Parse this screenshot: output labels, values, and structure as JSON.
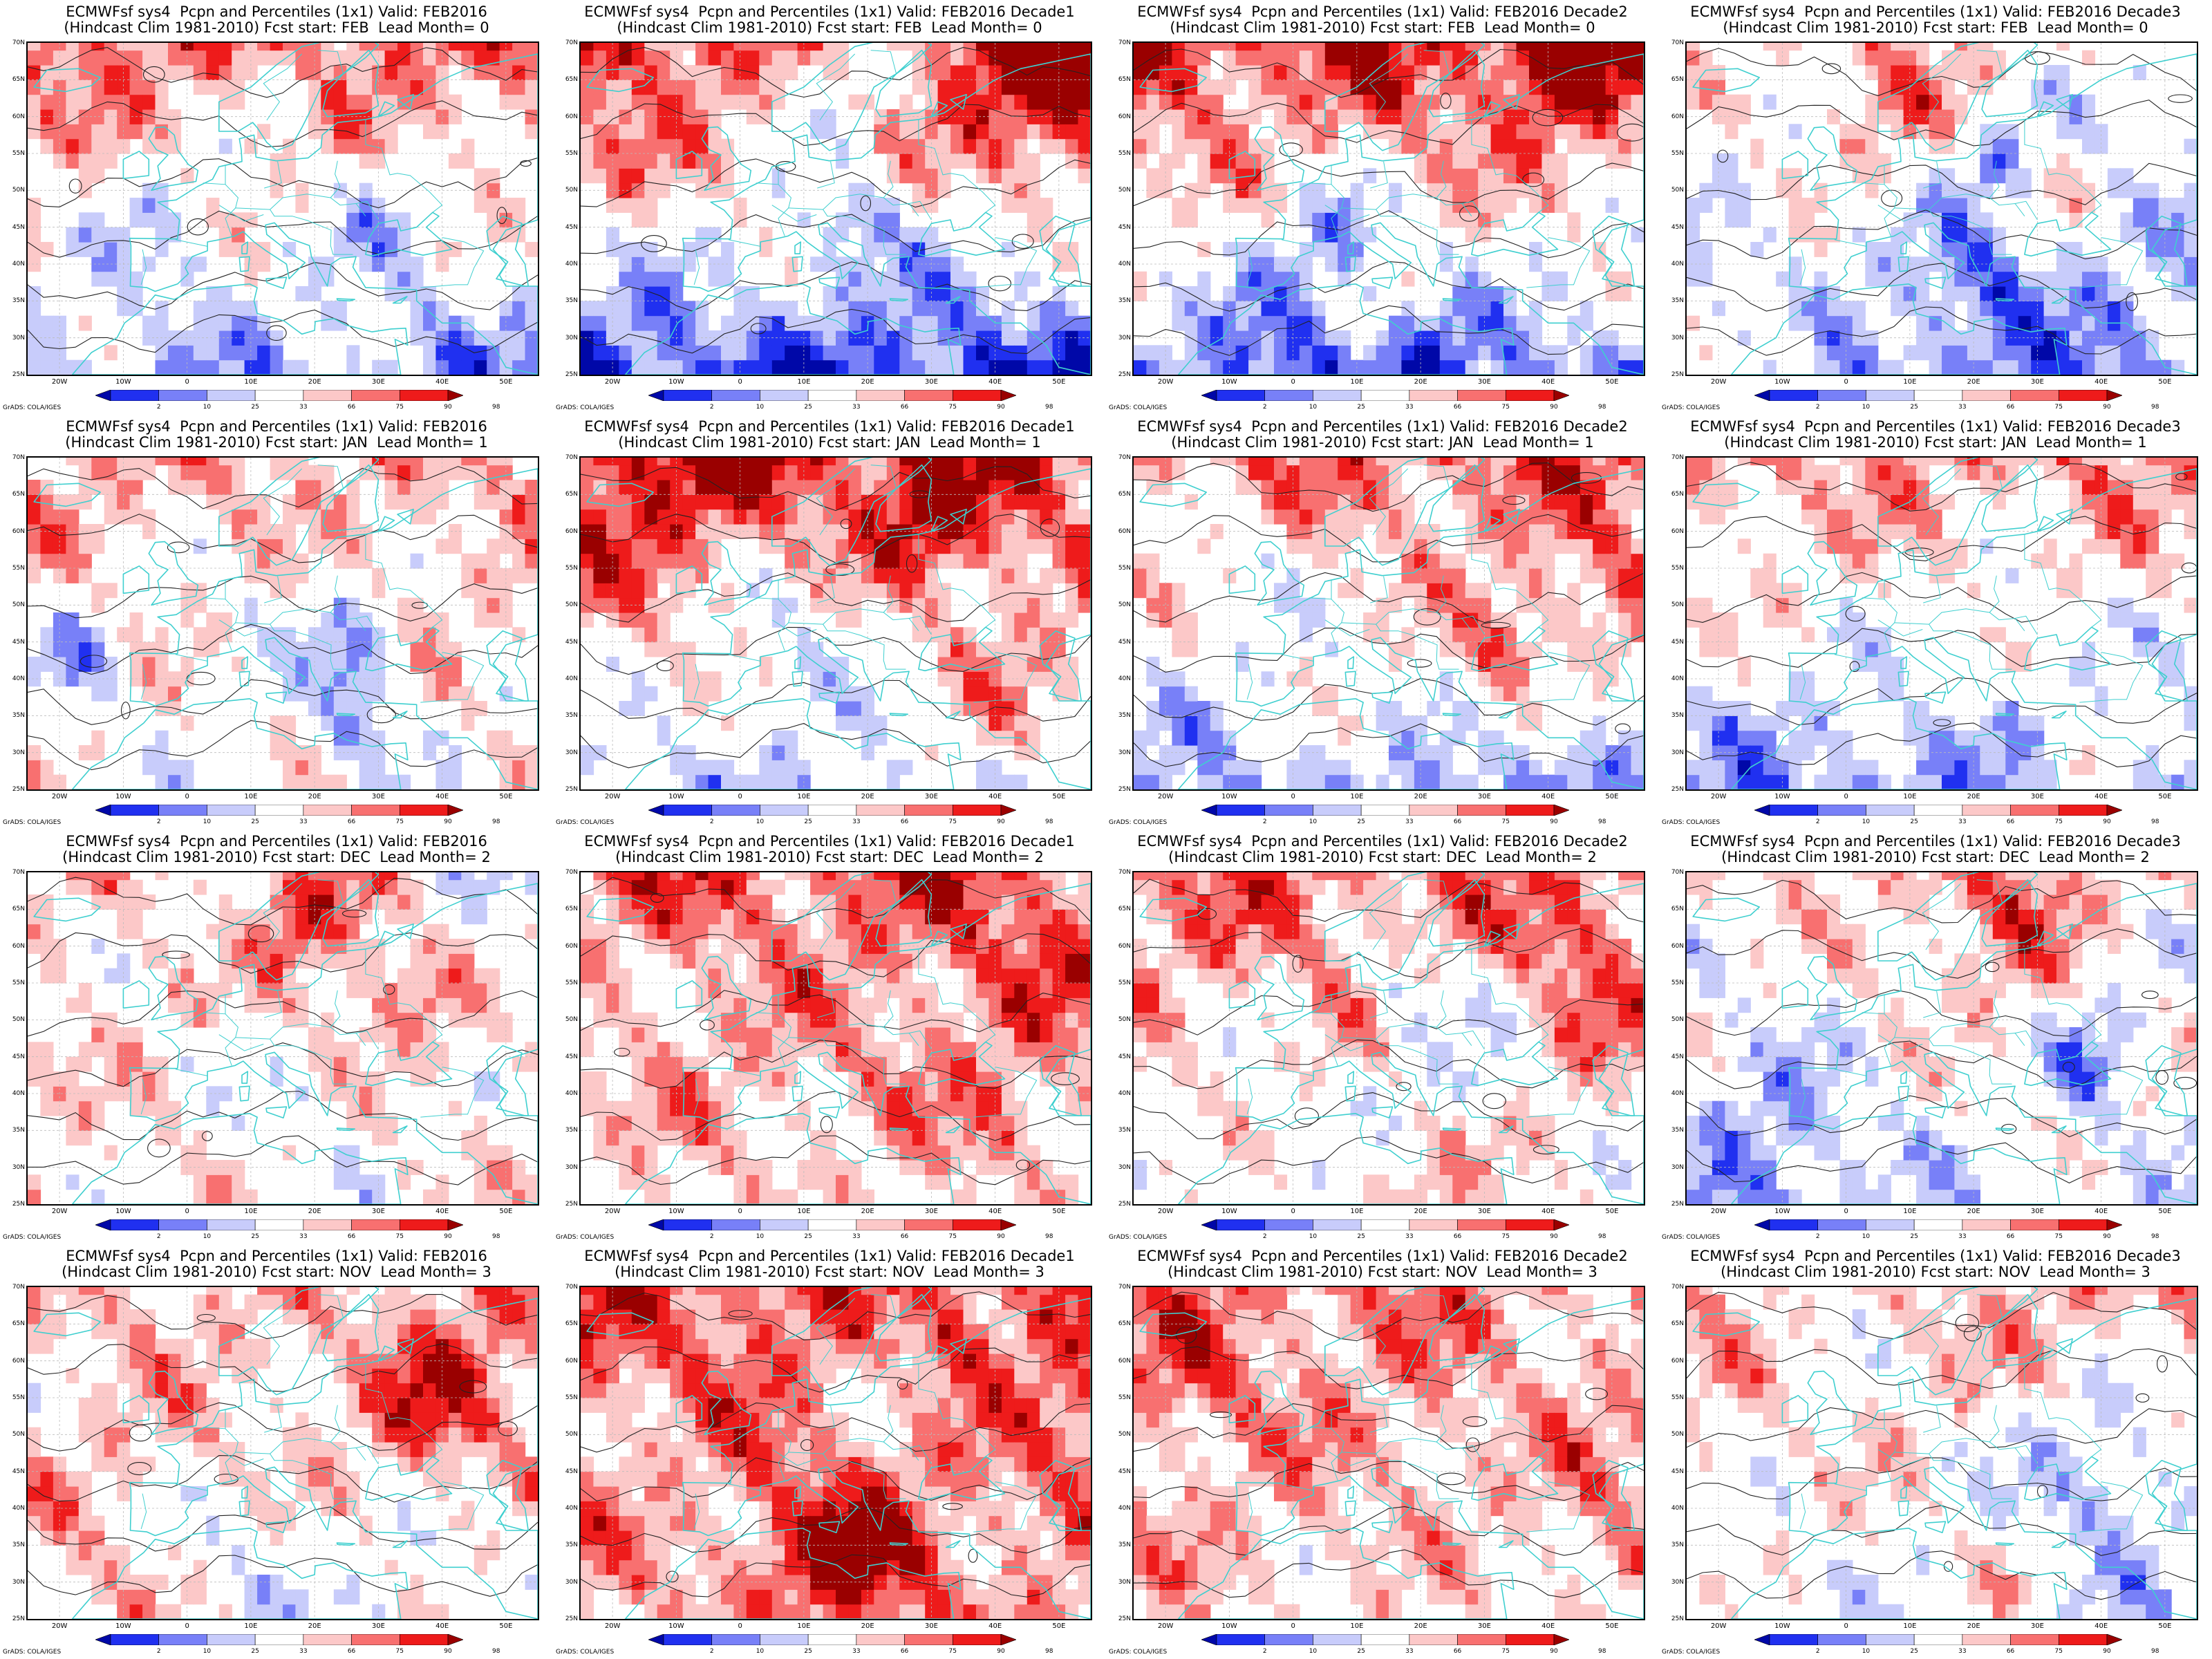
{
  "colorbar": {
    "labels": [
      "2",
      "10",
      "25",
      "33",
      "66",
      "75",
      "90",
      "98"
    ],
    "colors": [
      "#0008a8",
      "#2030f0",
      "#7880f8",
      "#c8ccfb",
      "#ffffff",
      "#fcc8c8",
      "#f87070",
      "#ee1b1b",
      "#9a0000"
    ]
  },
  "credit": "GrADS: COLA/IGES",
  "lat_labels": [
    "70N",
    "65N",
    "60N",
    "55N",
    "50N",
    "45N",
    "40N",
    "35N",
    "30N",
    "25N"
  ],
  "lon_labels": [
    "20W",
    "10W",
    "0",
    "10E",
    "20E",
    "30E",
    "40E",
    "50E"
  ],
  "palette": {
    "coast": "#3fcfcf",
    "contour": "#222222",
    "grid": "#bbbbbb",
    "levels": [
      "#0008a8",
      "#2030f0",
      "#7880f8",
      "#c8ccfb",
      "#fcc8c8",
      "#f87070",
      "#ee1b1b",
      "#9a0000"
    ]
  },
  "panels": [
    {
      "title1": "ECMWFsf sys4  Pcpn and Percentiles (1x1) Valid: FEB2016",
      "title2": "(Hindcast Clim 1981-2010) Fcst start: FEB  Lead Month= 0",
      "north": 0.7,
      "south": -0.55
    },
    {
      "title1": "ECMWFsf sys4  Pcpn and Percentiles (1x1) Valid: FEB2016 Decade1",
      "title2": "(Hindcast Clim 1981-2010) Fcst start: FEB  Lead Month= 0",
      "north": 0.95,
      "south": -0.95
    },
    {
      "title1": "ECMWFsf sys4  Pcpn and Percentiles (1x1) Valid: FEB2016 Decade2",
      "title2": "(Hindcast Clim 1981-2010) Fcst start: FEB  Lead Month= 0",
      "north": 0.9,
      "south": -0.6
    },
    {
      "title1": "ECMWFsf sys4  Pcpn and Percentiles (1x1) Valid: FEB2016 Decade3",
      "title2": "(Hindcast Clim 1981-2010) Fcst start: FEB  Lead Month= 0",
      "north": 0.15,
      "south": -0.6
    },
    {
      "title1": "ECMWFsf sys4  Pcpn and Percentiles (1x1) Valid: FEB2016",
      "title2": "(Hindcast Clim 1981-2010) Fcst start: JAN  Lead Month= 1",
      "north": 0.45,
      "south": 0.0
    },
    {
      "title1": "ECMWFsf sys4  Pcpn and Percentiles (1x1) Valid: FEB2016 Decade1",
      "title2": "(Hindcast Clim 1981-2010) Fcst start: JAN  Lead Month= 1",
      "north": 0.95,
      "south": -0.3
    },
    {
      "title1": "ECMWFsf sys4  Pcpn and Percentiles (1x1) Valid: FEB2016 Decade2",
      "title2": "(Hindcast Clim 1981-2010) Fcst start: JAN  Lead Month= 1",
      "north": 0.7,
      "south": -0.5
    },
    {
      "title1": "ECMWFsf sys4  Pcpn and Percentiles (1x1) Valid: FEB2016 Decade3",
      "title2": "(Hindcast Clim 1981-2010) Fcst start: JAN  Lead Month= 1",
      "north": 0.55,
      "south": -0.55
    },
    {
      "title1": "ECMWFsf sys4  Pcpn and Percentiles (1x1) Valid: FEB2016",
      "title2": "(Hindcast Clim 1981-2010) Fcst start: DEC  Lead Month= 2",
      "north": 0.3,
      "south": 0.15
    },
    {
      "title1": "ECMWFsf sys4  Pcpn and Percentiles (1x1) Valid: FEB2016 Decade1",
      "title2": "(Hindcast Clim 1981-2010) Fcst start: DEC  Lead Month= 2",
      "north": 0.85,
      "south": 0.25
    },
    {
      "title1": "ECMWFsf sys4  Pcpn and Percentiles (1x1) Valid: FEB2016 Decade2",
      "title2": "(Hindcast Clim 1981-2010) Fcst start: DEC  Lead Month= 2",
      "north": 0.65,
      "south": 0.0
    },
    {
      "title1": "ECMWFsf sys4  Pcpn and Percentiles (1x1) Valid: FEB2016 Decade3",
      "title2": "(Hindcast Clim 1981-2010) Fcst start: DEC  Lead Month= 2",
      "north": 0.3,
      "south": -0.2
    },
    {
      "title1": "ECMWFsf sys4  Pcpn and Percentiles (1x1) Valid: FEB2016",
      "title2": "(Hindcast Clim 1981-2010) Fcst start: NOV  Lead Month= 3",
      "north": 0.35,
      "south": 0.2
    },
    {
      "title1": "ECMWFsf sys4  Pcpn and Percentiles (1x1) Valid: FEB2016 Decade1",
      "title2": "(Hindcast Clim 1981-2010) Fcst start: NOV  Lead Month= 3",
      "north": 0.85,
      "south": 0.45
    },
    {
      "title1": "ECMWFsf sys4  Pcpn and Percentiles (1x1) Valid: FEB2016 Decade2",
      "title2": "(Hindcast Clim 1981-2010) Fcst start: NOV  Lead Month= 3",
      "north": 0.6,
      "south": 0.25
    },
    {
      "title1": "ECMWFsf sys4  Pcpn and Percentiles (1x1) Valid: FEB2016 Decade3",
      "title2": "(Hindcast Clim 1981-2010) Fcst start: NOV  Lead Month= 3",
      "north": 0.5,
      "south": -0.1
    }
  ]
}
